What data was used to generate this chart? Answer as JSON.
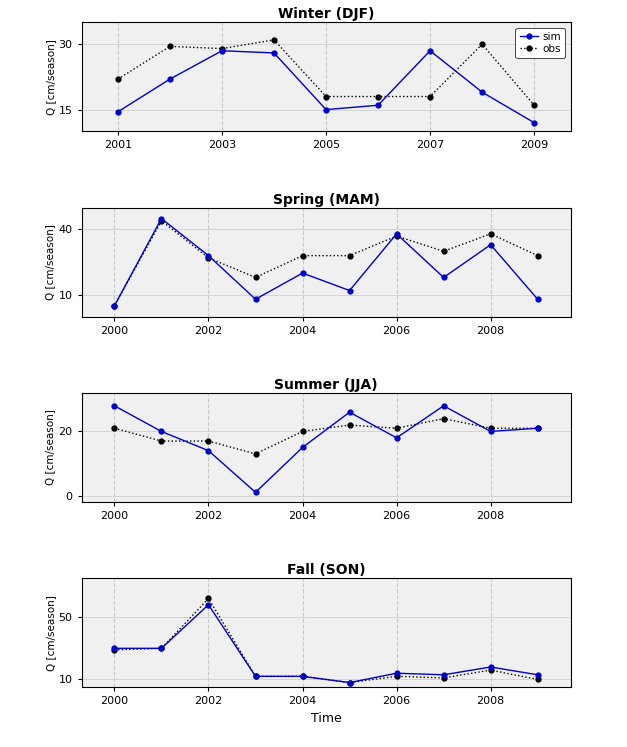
{
  "winter": {
    "title": "Winter (DJF)",
    "years_sim": [
      2001,
      2002,
      2003,
      2004,
      2005,
      2006,
      2007,
      2008,
      2009
    ],
    "sim": [
      14.5,
      22,
      28.5,
      28,
      15,
      16,
      28.5,
      19,
      12
    ],
    "years_obs": [
      2001,
      2002,
      2003,
      2004,
      2005,
      2006,
      2007,
      2008,
      2009
    ],
    "obs": [
      22,
      29.5,
      29,
      31,
      18,
      18,
      18,
      30,
      16
    ],
    "ylim": [
      10,
      35
    ],
    "yticks": [
      15,
      30
    ],
    "ylabel": "Q [cm/season]",
    "xlim": [
      2000.3,
      2009.7
    ],
    "xticks": [
      2001,
      2003,
      2005,
      2007,
      2009
    ]
  },
  "spring": {
    "title": "Spring (MAM)",
    "years_sim": [
      2000,
      2001,
      2002,
      2003,
      2004,
      2005,
      2006,
      2007,
      2008,
      2009
    ],
    "sim": [
      5,
      45,
      28,
      8,
      20,
      12,
      38,
      18,
      33,
      8
    ],
    "years_obs": [
      2000,
      2001,
      2002,
      2003,
      2004,
      2005,
      2006,
      2007,
      2008,
      2009
    ],
    "obs": [
      5,
      44,
      27,
      18,
      28,
      28,
      37,
      30,
      38,
      28
    ],
    "ylim": [
      0,
      50
    ],
    "yticks": [
      10,
      40
    ],
    "ylabel": "Q [cm/season]",
    "xlim": [
      1999.3,
      2009.7
    ],
    "xticks": [
      2000,
      2002,
      2004,
      2006,
      2008
    ]
  },
  "summer": {
    "title": "Summer (JJA)",
    "years_sim": [
      2000,
      2001,
      2002,
      2003,
      2004,
      2005,
      2006,
      2007,
      2008,
      2009
    ],
    "sim": [
      28,
      20,
      14,
      1,
      15,
      26,
      18,
      28,
      20,
      21
    ],
    "years_obs": [
      2000,
      2001,
      2002,
      2003,
      2004,
      2005,
      2006,
      2007,
      2008,
      2009
    ],
    "obs": [
      21,
      17,
      17,
      13,
      20,
      22,
      21,
      24,
      21,
      21
    ],
    "ylim": [
      -2,
      32
    ],
    "yticks": [
      0,
      20
    ],
    "ylabel": "Q [cm/season]",
    "xlim": [
      1999.3,
      2009.7
    ],
    "xticks": [
      2000,
      2002,
      2004,
      2006,
      2008
    ]
  },
  "fall": {
    "title": "Fall (SON)",
    "years_sim": [
      2000,
      2001,
      2002,
      2003,
      2004,
      2005,
      2006,
      2007,
      2008,
      2009
    ],
    "sim": [
      30,
      30,
      58,
      12,
      12,
      8,
      14,
      13,
      18,
      13
    ],
    "years_obs": [
      2000,
      2001,
      2002,
      2003,
      2004,
      2005,
      2006,
      2007,
      2008,
      2009
    ],
    "obs": [
      29,
      30,
      62,
      12,
      12,
      8,
      12,
      11,
      16,
      10
    ],
    "ylim": [
      5,
      75
    ],
    "yticks": [
      10,
      50
    ],
    "ylabel": "Q [cm/season]",
    "xlim": [
      1999.3,
      2009.7
    ],
    "xticks": [
      2000,
      2002,
      2004,
      2006,
      2008
    ]
  },
  "sim_color": "#0000CC",
  "obs_color": "#000000",
  "sim_linestyle": "-",
  "obs_linestyle": ":",
  "sim_marker": "o",
  "obs_marker": "o",
  "bg_color": "#f0f0f0",
  "grid_color": "#c8c8c8",
  "xlabel": "Time"
}
